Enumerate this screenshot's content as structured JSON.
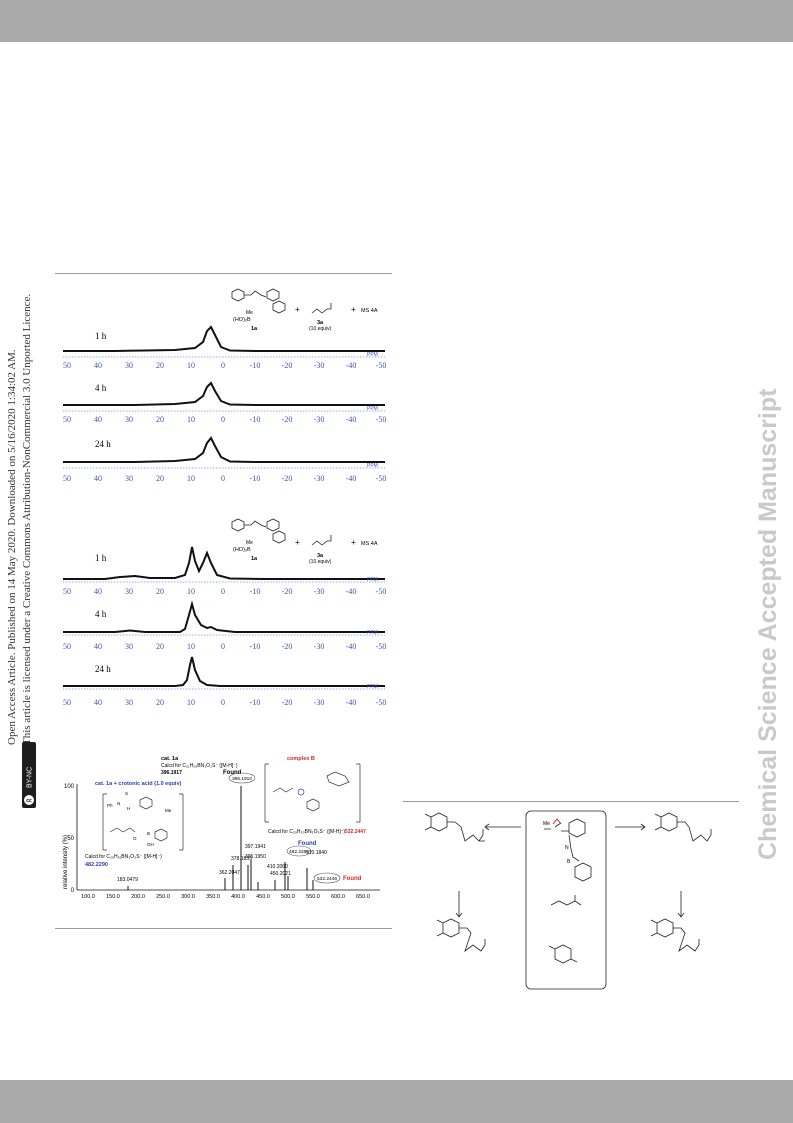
{
  "header": {},
  "side_notice": {
    "line1": "Open Access Article. Published on 14 May 2020. Downloaded on 5/16/2020 1:34:02 AM.",
    "line2": "This article is licensed under a Creative Commons Attribution-NonCommercial 3.0 Unported Licence.",
    "badge": "BY-NC"
  },
  "watermark": "Chemical Science Accepted Manuscript",
  "nmr_top": {
    "traces": [
      {
        "label": "1 h"
      },
      {
        "label": "4 h"
      },
      {
        "label": "24 h"
      }
    ],
    "axis_ticks": [
      "50",
      "40",
      "30",
      "20",
      "10",
      "0",
      "-10",
      "-20",
      "-30",
      "-40",
      "-50"
    ],
    "unit": "PPM",
    "scheme": {
      "cat": "1a",
      "acid": "3a",
      "equiv": "(10 equiv)",
      "additive": "MS 4A",
      "frag1": "(HO)₂B",
      "frag2": "Me"
    }
  },
  "nmr_bottom": {
    "traces": [
      {
        "label": "1 h"
      },
      {
        "label": "4 h"
      },
      {
        "label": "24 h"
      }
    ],
    "axis_ticks": [
      "50",
      "40",
      "30",
      "20",
      "10",
      "0",
      "-10",
      "-20",
      "-30",
      "-40",
      "-50"
    ],
    "unit": "PPM",
    "scheme": {
      "cat": "1a",
      "acid": "3a",
      "equiv": "(10 equiv)",
      "additive": "MS 4A",
      "frag1": "(HO)₂B",
      "frag2": "Me"
    }
  },
  "ms": {
    "ylabel": "relative intensity (%)",
    "yticks": [
      "100",
      "50",
      "0"
    ],
    "xticks": [
      "100.0",
      "150.0",
      "200.0",
      "250.0",
      "300.0",
      "350.0",
      "400.0",
      "450.0",
      "500.0",
      "550.0",
      "600.0",
      "650.0"
    ],
    "cat_title": "cat. 1a",
    "cat_calc": "Calcd for C₂₁H₂₅BN₃O₂S⁻ ([M-H]⁻)",
    "cat_value": "396.1917",
    "cat_found": "Found",
    "cat_found_value": "396.1910",
    "crotonic_title": "cat. 1a + crotonic acid (1.0 equiv)",
    "crotonic_calc": "Calcd for C₂₅H₃₁BN₃O₃S⁻ ([M-H]⁻)",
    "crotonic_value": "482.2290",
    "crotonic_found": "Found",
    "crotonic_found_value": "482.2269",
    "complex_title": "complex B",
    "complex_calc": "Calcd for C₂₉H₃₃BN₃O₃S⁻ ([M-H]⁻)",
    "complex_value": "532.2447",
    "complex_found": "Found",
    "complex_found_value": "532.2446",
    "peaks": [
      "183.0479",
      "362.2047",
      "378.1833",
      "395.1950",
      "397.1941",
      "410.2060",
      "450.2021",
      "510.1840"
    ],
    "struct_labels": [
      "Ph",
      "N",
      "H",
      "S",
      "Me",
      "O",
      "B",
      "OH"
    ]
  },
  "scheme_right": {
    "labels": [
      "N",
      "Me",
      "B"
    ]
  }
}
